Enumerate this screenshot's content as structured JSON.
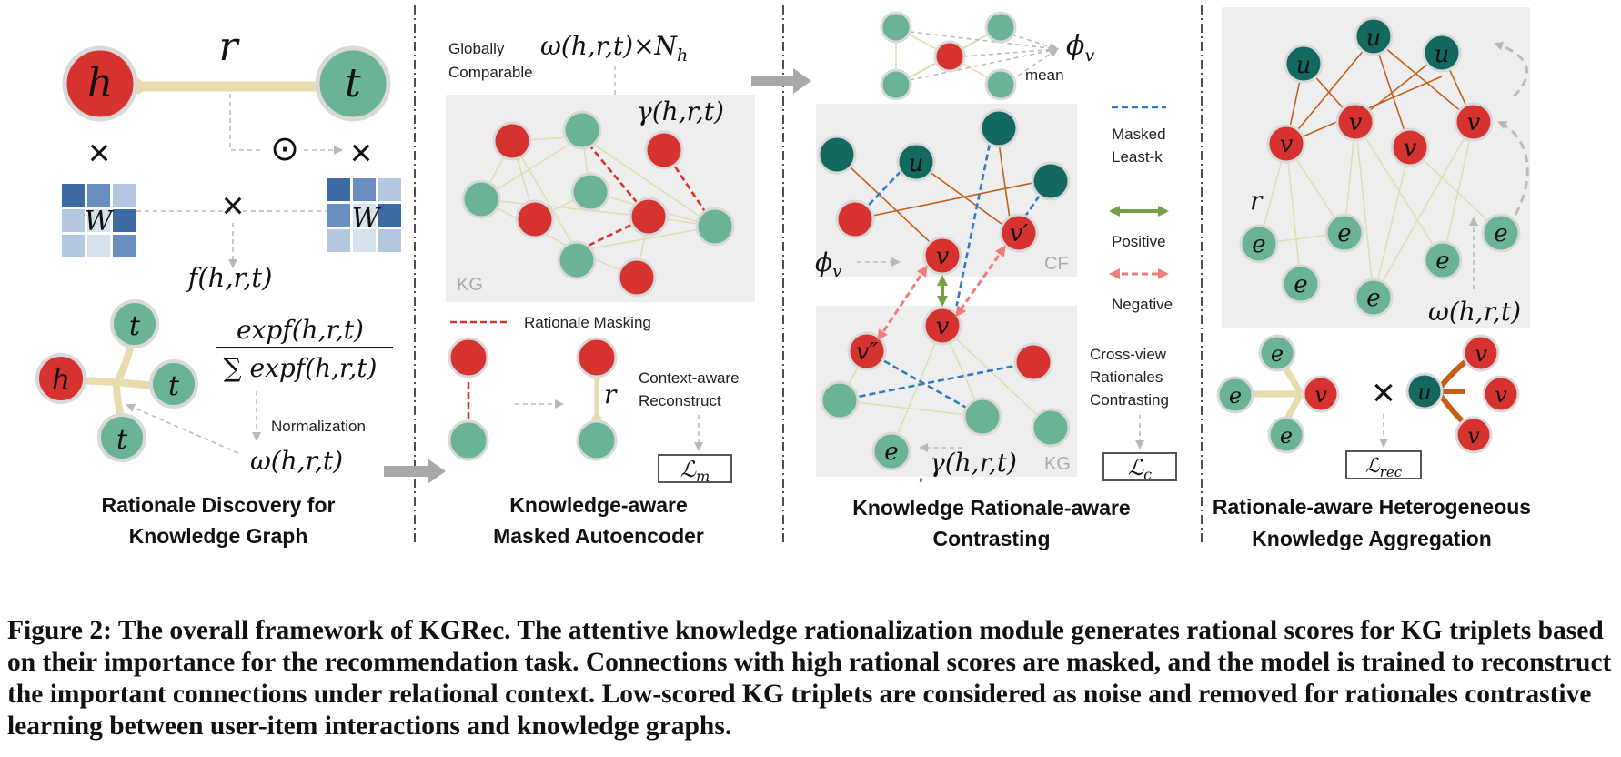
{
  "colors": {
    "red": "#d63230",
    "green": "#6ab394",
    "teal": "#14695f",
    "positive": "#76a048",
    "negative": "#f27c7c",
    "masked": "#2f7cc5",
    "rationale_mask": "#d63230",
    "matrix_blue": "#3d6aa3"
  },
  "labels": {
    "h": "h",
    "t": "t",
    "r": "r",
    "u": "u",
    "v": "v",
    "e": "e",
    "v_prime": "v′",
    "v_dprime": "v″",
    "W": "W",
    "times": "×",
    "odot": "⊙",
    "f_hrt": "f(h,r,t)",
    "softmax_num": "expf(h,r,t)",
    "softmax_den": "∑ expf(h,r,t)",
    "normalization": "Normalization",
    "omega_hrt": "ω(h,r,t)",
    "globally": "Globally",
    "comparable": "Comparable",
    "omega_nh": "ω(h,r,t)×N",
    "nh_sub": "h",
    "gamma_hrt": "γ(h,r,t)",
    "kg": "KG",
    "cf": "CF",
    "rationale_masking": "Rationale Masking",
    "context_aware": "Context-aware",
    "reconstruct": "Reconstruct",
    "phi": "ϕ",
    "phi_sub": "v",
    "mean": "mean",
    "masked_leastk_1": "Masked",
    "masked_leastk_2": "Least-k",
    "positive": "Positive",
    "negative": "Negative",
    "crossview_1": "Cross-view",
    "crossview_2": "Rationales",
    "crossview_3": "Contrasting",
    "loss_m": "ℒ",
    "loss_m_sub": "m",
    "loss_c": "ℒ",
    "loss_c_sub": "c",
    "loss_rec": "ℒ",
    "loss_rec_sub": "rec"
  },
  "titles": {
    "sec1_line1": "Rationale Discovery for",
    "sec1_line2": "Knowledge Graph",
    "sec2_line1": "Knowledge-aware",
    "sec2_line2": "Masked Autoencoder",
    "sec3_line1": "Knowledge Rationale-aware",
    "sec3_line2": "Contrasting",
    "sec4_line1": "Rationale-aware Heterogeneous",
    "sec4_line2": "Knowledge Aggregation"
  },
  "caption": "Figure 2: The overall framework of KGRec. The attentive knowledge rationalization module generates rational scores for KG triplets based on their importance for the recommendation task. Connections with high rational scores are masked, and the model is trained to reconstruct the important connections under relational context. Low-scored KG triplets are considered as noise and removed for rationales contrastive learning between user-item interactions and knowledge graphs."
}
